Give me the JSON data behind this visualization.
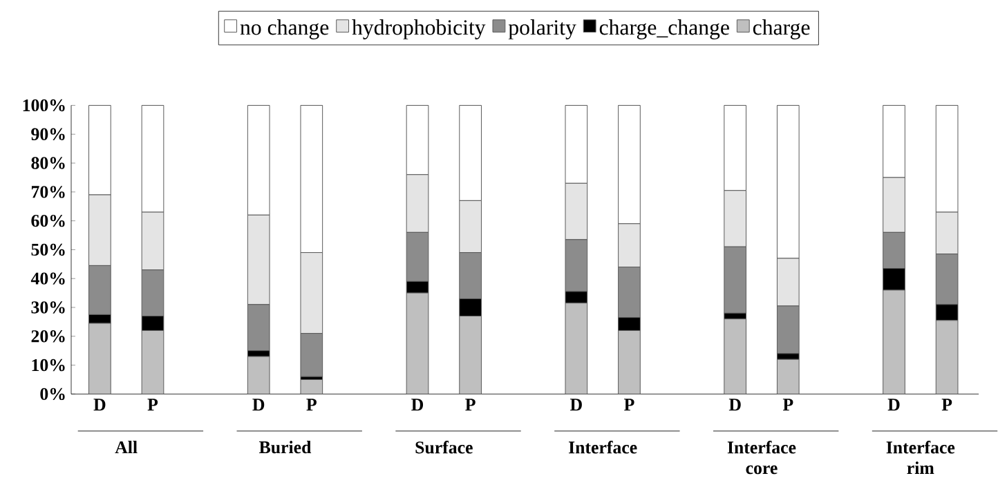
{
  "chart_data": {
    "type": "bar",
    "stacked": true,
    "legend": "top",
    "grid": false,
    "categories": [
      "D",
      "P",
      "D",
      "P",
      "D",
      "P",
      "D",
      "P",
      "D",
      "P",
      "D",
      "P"
    ],
    "series": [
      {
        "name": "charge",
        "color": "#bfbfbf",
        "values": [
          24.5,
          22,
          13,
          5,
          35,
          27,
          31.5,
          22,
          26,
          12,
          36,
          25.5
        ]
      },
      {
        "name": "charge_change",
        "color": "#000000",
        "values": [
          3,
          5,
          2,
          1,
          4,
          6,
          4,
          4.5,
          2,
          2,
          7.5,
          5.5
        ]
      },
      {
        "name": "polarity",
        "color": "#8c8c8c",
        "values": [
          17,
          16,
          16,
          15,
          17,
          16,
          18,
          17.5,
          23,
          16.5,
          12.5,
          17.5
        ]
      },
      {
        "name": "hydrophobicity",
        "color": "#e4e4e4",
        "values": [
          24.5,
          20,
          31,
          28,
          20,
          18,
          19.5,
          15,
          19.5,
          16.5,
          19,
          14.5
        ]
      },
      {
        "name": "no change",
        "color": "#ffffff",
        "values": [
          31,
          37,
          38,
          51,
          24,
          33,
          27,
          41,
          29.5,
          53,
          25,
          37
        ]
      }
    ],
    "ylim": [
      0,
      100
    ],
    "yticks": [
      {
        "value": 0,
        "label": "0%"
      },
      {
        "value": 10,
        "label": "10%"
      },
      {
        "value": 20,
        "label": "20%"
      },
      {
        "value": 30,
        "label": "30%"
      },
      {
        "value": 40,
        "label": "40%"
      },
      {
        "value": 50,
        "label": "50%"
      },
      {
        "value": 60,
        "label": "60%"
      },
      {
        "value": 70,
        "label": "70%"
      },
      {
        "value": 80,
        "label": "80%"
      },
      {
        "value": 90,
        "label": "90%"
      },
      {
        "value": 100,
        "label": "100%"
      }
    ],
    "annotations": [
      "All",
      "Buried",
      "Surface",
      "Interface",
      "Interface core",
      "Interface rim"
    ]
  }
}
